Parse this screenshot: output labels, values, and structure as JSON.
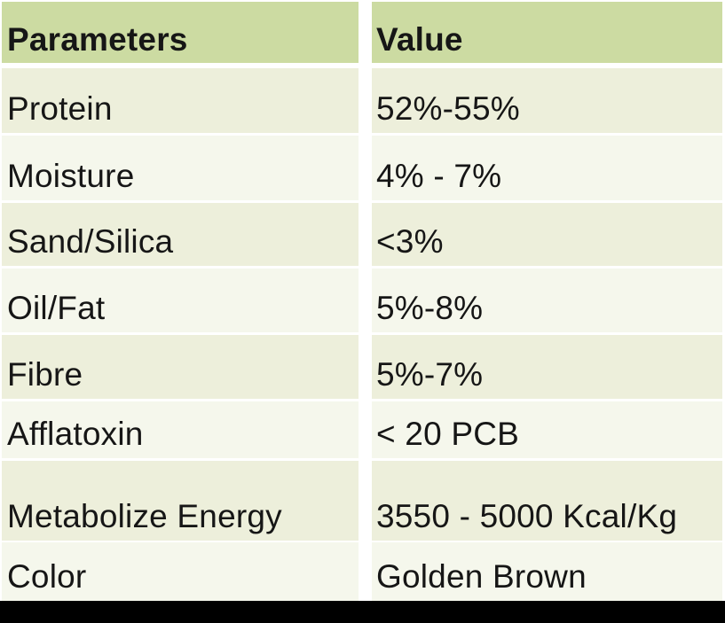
{
  "table": {
    "header": {
      "param": "Parameters",
      "value": "Value"
    },
    "rows": [
      {
        "param": "Protein",
        "value": "52%-55%"
      },
      {
        "param": "Moisture",
        "value": "4% - 7%"
      },
      {
        "param": "Sand/Silica",
        "value": "<3%"
      },
      {
        "param": "Oil/Fat",
        "value": "5%-8%"
      },
      {
        "param": "Fibre",
        "value": "5%-7%"
      },
      {
        "param": "Afflatoxin",
        "value": "< 20 PCB"
      },
      {
        "param": "Metabolize Energy",
        "value": "3550 - 5000 Kcal/Kg"
      },
      {
        "param": "Color",
        "value": "Golden Brown"
      }
    ],
    "colors": {
      "header_bg": "#ccdba2",
      "row_odd_bg": "#edefdb",
      "row_even_bg": "#f5f7ec",
      "separator": "#ffffff",
      "bottom_bar": "#000000",
      "text": "#161616"
    }
  },
  "chart_data": {
    "type": "table",
    "title": "",
    "columns": [
      "Parameters",
      "Value"
    ],
    "rows": [
      [
        "Protein",
        "52%-55%"
      ],
      [
        "Moisture",
        "4% - 7%"
      ],
      [
        "Sand/Silica",
        "<3%"
      ],
      [
        "Oil/Fat",
        "5%-8%"
      ],
      [
        "Fibre",
        "5%-7%"
      ],
      [
        "Afflatoxin",
        "< 20 PCB"
      ],
      [
        "Metabolize Energy",
        "3550 - 5000 Kcal/Kg"
      ],
      [
        "Color",
        "Golden Brown"
      ]
    ]
  }
}
